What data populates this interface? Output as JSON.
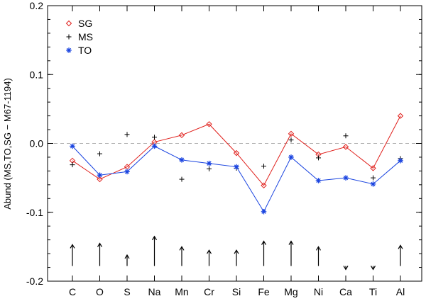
{
  "chart_data": {
    "type": "line",
    "title": "",
    "xlabel": "",
    "ylabel": "Abund (MS,TO,SG − M67-1194)",
    "categories": [
      "C",
      "O",
      "S",
      "Na",
      "Mn",
      "Cr",
      "Si",
      "Fe",
      "Mg",
      "Ni",
      "Ca",
      "Ti",
      "Al"
    ],
    "ylim": [
      -0.2,
      0.2
    ],
    "yticks": [
      -0.2,
      -0.1,
      0.0,
      0.1,
      0.2
    ],
    "ytick_labels": [
      "-0.2",
      "-0.1",
      "0.0",
      "0.1",
      "0.2"
    ],
    "reference_line": 0.0,
    "legend_position": "top-left",
    "series": [
      {
        "name": "SG",
        "marker": "diamond",
        "color": "#e0201c",
        "values": [
          -0.025,
          -0.052,
          -0.034,
          0.002,
          0.012,
          0.028,
          -0.014,
          -0.061,
          0.014,
          -0.016,
          -0.005,
          -0.036,
          0.04
        ],
        "line": true
      },
      {
        "name": "MS",
        "marker": "plus",
        "color": "#000000",
        "values": [
          -0.031,
          -0.015,
          0.013,
          0.009,
          -0.052,
          -0.037,
          -0.036,
          -0.033,
          0.005,
          -0.021,
          0.011,
          -0.05,
          -0.022
        ],
        "line": false
      },
      {
        "name": "TO",
        "marker": "asterisk",
        "color": "#1a44e0",
        "values": [
          -0.004,
          -0.046,
          -0.041,
          -0.004,
          -0.024,
          -0.029,
          -0.034,
          -0.099,
          -0.02,
          -0.054,
          -0.05,
          -0.059,
          -0.025
        ],
        "line": true
      }
    ],
    "arrows": {
      "color": "#000000",
      "base": -0.178,
      "tips": [
        -0.147,
        -0.145,
        -0.162,
        -0.135,
        -0.15,
        -0.155,
        -0.155,
        -0.142,
        -0.142,
        -0.15,
        -0.183,
        -0.183,
        -0.148
      ]
    }
  }
}
